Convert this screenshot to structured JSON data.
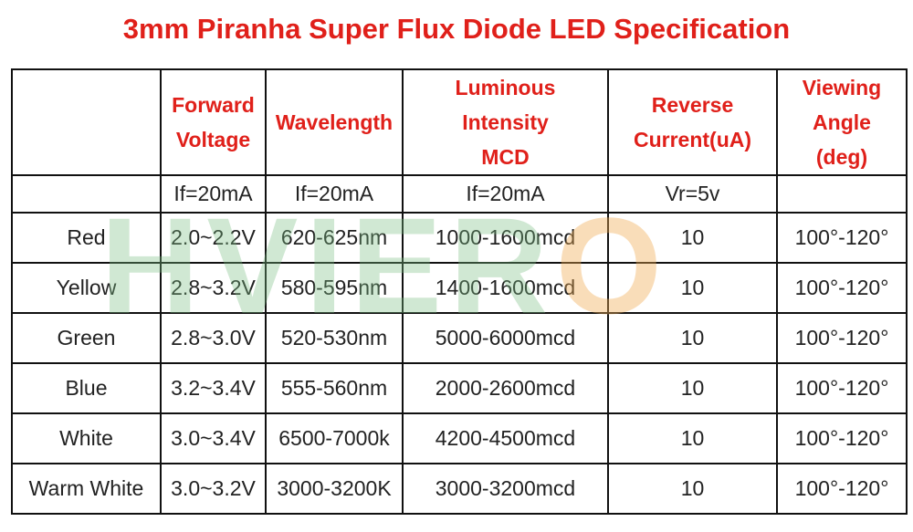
{
  "title": "3mm Piranha Super Flux Diode LED Specification",
  "watermark": "HVIERO",
  "table": {
    "headers": [
      [
        "Forward",
        "Voltage"
      ],
      [
        "Wavelength"
      ],
      [
        "Luminous",
        "Intensity",
        "MCD"
      ],
      [
        "Reverse",
        "Current(uA)"
      ],
      [
        "Viewing",
        "Angle",
        "(deg)"
      ]
    ],
    "conditions": [
      "If=20mA",
      "If=20mA",
      "If=20mA",
      "Vr=5v"
    ],
    "rows": [
      [
        "Red",
        "2.0~2.2V",
        "620-625nm",
        "1000-1600mcd",
        "10",
        "100°-120°"
      ],
      [
        "Yellow",
        "2.8~3.2V",
        "580-595nm",
        "1400-1600mcd",
        "10",
        "100°-120°"
      ],
      [
        "Green",
        "2.8~3.0V",
        "520-530nm",
        "5000-6000mcd",
        "10",
        "100°-120°"
      ],
      [
        "Blue",
        "3.2~3.4V",
        "555-560nm",
        "2000-2600mcd",
        "10",
        "100°-120°"
      ],
      [
        "White",
        "3.0~3.4V",
        "6500-7000k",
        "4200-4500mcd",
        "10",
        "100°-120°"
      ],
      [
        "Warm White",
        "3.0~3.2V",
        "3000-3200K",
        "3000-3200mcd",
        "10",
        "100°-120°"
      ]
    ]
  }
}
